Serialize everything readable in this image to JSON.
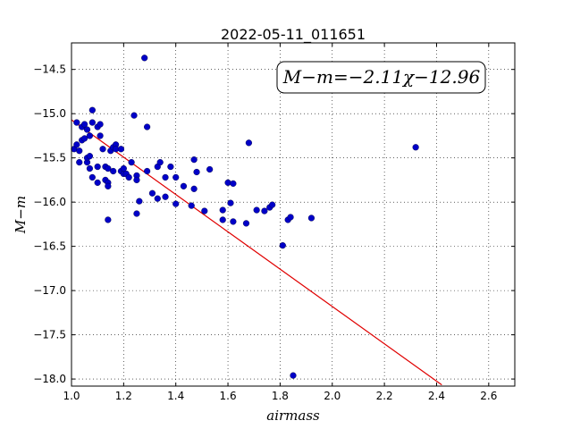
{
  "chart_data": {
    "type": "scatter",
    "title": "2022-05-11_011651",
    "xlabel": "airmass",
    "ylabel": "M−m",
    "xlim": [
      1.0,
      2.7
    ],
    "ylim": [
      -18.08,
      -14.2
    ],
    "xticks": [
      1.0,
      1.2,
      1.4,
      1.6,
      1.8,
      2.0,
      2.2,
      2.4,
      2.6
    ],
    "xtick_labels": [
      "1.0",
      "1.2",
      "1.4",
      "1.6",
      "1.8",
      "2.0",
      "2.2",
      "2.4",
      "2.6"
    ],
    "yticks": [
      -14.5,
      -15.0,
      -15.5,
      -16.0,
      -16.5,
      -17.0,
      -17.5,
      -18.0
    ],
    "ytick_labels": [
      "−14.5",
      "−15.0",
      "−15.5",
      "−16.0",
      "−16.5",
      "−17.0",
      "−17.5",
      "−18.0"
    ],
    "grid": true,
    "annotation": "M−m=−2.11χ−12.96",
    "fit": {
      "slope": -2.11,
      "intercept": -12.96,
      "x_range": [
        1.0,
        2.42
      ],
      "color": "#e00000"
    },
    "point_color": "#0000c8",
    "points": [
      [
        1.01,
        -15.4
      ],
      [
        1.02,
        -15.1
      ],
      [
        1.02,
        -15.35
      ],
      [
        1.03,
        -15.42
      ],
      [
        1.03,
        -15.55
      ],
      [
        1.04,
        -15.15
      ],
      [
        1.04,
        -15.3
      ],
      [
        1.05,
        -15.12
      ],
      [
        1.05,
        -15.28
      ],
      [
        1.06,
        -15.55
      ],
      [
        1.06,
        -15.5
      ],
      [
        1.06,
        -15.18
      ],
      [
        1.07,
        -15.25
      ],
      [
        1.07,
        -15.48
      ],
      [
        1.07,
        -15.62
      ],
      [
        1.08,
        -15.72
      ],
      [
        1.08,
        -14.96
      ],
      [
        1.08,
        -15.1
      ],
      [
        1.1,
        -15.15
      ],
      [
        1.1,
        -15.6
      ],
      [
        1.1,
        -15.78
      ],
      [
        1.11,
        -15.12
      ],
      [
        1.11,
        -15.25
      ],
      [
        1.12,
        -15.4
      ],
      [
        1.13,
        -15.6
      ],
      [
        1.13,
        -15.75
      ],
      [
        1.14,
        -15.62
      ],
      [
        1.14,
        -15.78
      ],
      [
        1.14,
        -15.82
      ],
      [
        1.14,
        -16.2
      ],
      [
        1.15,
        -15.42
      ],
      [
        1.16,
        -15.38
      ],
      [
        1.16,
        -15.65
      ],
      [
        1.17,
        -15.35
      ],
      [
        1.17,
        -15.4
      ],
      [
        1.19,
        -15.4
      ],
      [
        1.19,
        -15.65
      ],
      [
        1.2,
        -15.68
      ],
      [
        1.2,
        -15.62
      ],
      [
        1.21,
        -15.68
      ],
      [
        1.22,
        -15.72
      ],
      [
        1.23,
        -15.55
      ],
      [
        1.24,
        -15.02
      ],
      [
        1.25,
        -15.7
      ],
      [
        1.25,
        -15.75
      ],
      [
        1.25,
        -16.13
      ],
      [
        1.26,
        -15.99
      ],
      [
        1.28,
        -14.37
      ],
      [
        1.29,
        -15.15
      ],
      [
        1.29,
        -15.65
      ],
      [
        1.31,
        -15.9
      ],
      [
        1.33,
        -15.6
      ],
      [
        1.33,
        -15.96
      ],
      [
        1.34,
        -15.55
      ],
      [
        1.36,
        -15.72
      ],
      [
        1.36,
        -15.94
      ],
      [
        1.38,
        -15.6
      ],
      [
        1.4,
        -15.72
      ],
      [
        1.4,
        -16.02
      ],
      [
        1.43,
        -15.82
      ],
      [
        1.46,
        -16.04
      ],
      [
        1.47,
        -15.52
      ],
      [
        1.47,
        -15.85
      ],
      [
        1.48,
        -15.66
      ],
      [
        1.51,
        -16.1
      ],
      [
        1.53,
        -15.63
      ],
      [
        1.58,
        -16.2
      ],
      [
        1.58,
        -16.09
      ],
      [
        1.6,
        -15.78
      ],
      [
        1.61,
        -16.01
      ],
      [
        1.62,
        -16.22
      ],
      [
        1.62,
        -15.79
      ],
      [
        1.67,
        -16.24
      ],
      [
        1.68,
        -15.33
      ],
      [
        1.71,
        -16.09
      ],
      [
        1.74,
        -16.1
      ],
      [
        1.76,
        -16.06
      ],
      [
        1.77,
        -16.03
      ],
      [
        1.81,
        -16.49
      ],
      [
        1.83,
        -16.2
      ],
      [
        1.84,
        -16.17
      ],
      [
        1.85,
        -17.96
      ],
      [
        1.92,
        -16.18
      ],
      [
        2.32,
        -15.38
      ]
    ]
  }
}
